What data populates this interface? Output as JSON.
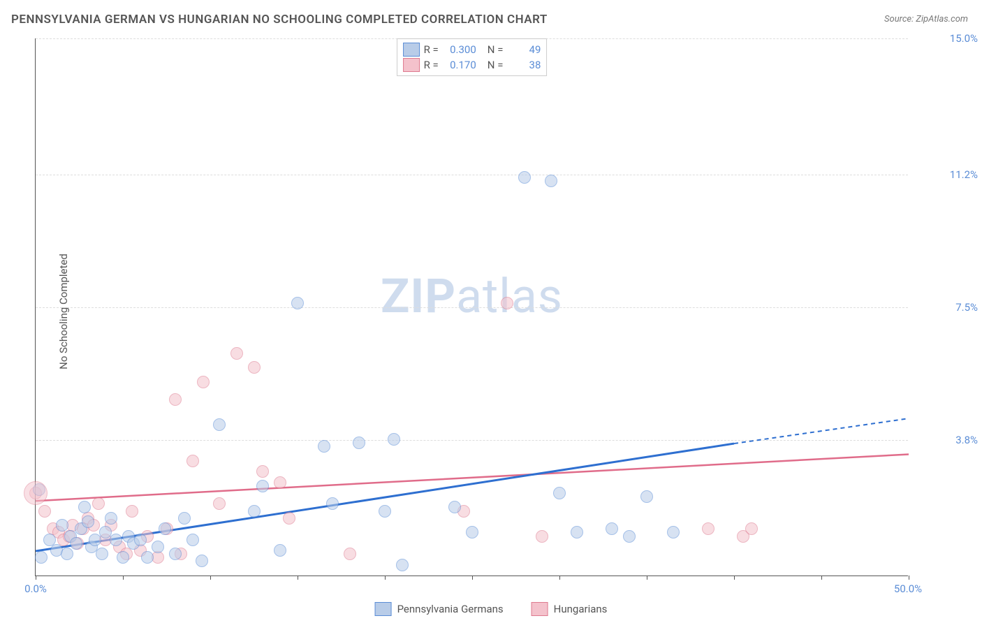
{
  "title": "PENNSYLVANIA GERMAN VS HUNGARIAN NO SCHOOLING COMPLETED CORRELATION CHART",
  "source": "Source: ZipAtlas.com",
  "ylabel": "No Schooling Completed",
  "watermark_bold": "ZIP",
  "watermark_rest": "atlas",
  "colors": {
    "series_a_fill": "#b8cce8",
    "series_a_stroke": "#5b8dd6",
    "series_b_fill": "#f4c2cc",
    "series_b_stroke": "#de7a8f",
    "trend_a": "#2e6fd0",
    "trend_b": "#e06c8a",
    "tick_text": "#5b8dd6",
    "grid": "#dddddd",
    "axis": "#555555",
    "title_color": "#555555",
    "background": "#ffffff"
  },
  "chart": {
    "type": "scatter",
    "xlim": [
      0,
      50
    ],
    "ylim": [
      0,
      15
    ],
    "ygrid": [
      3.8,
      7.5,
      11.2,
      15.0
    ],
    "ytick_labels": [
      "3.8%",
      "7.5%",
      "11.2%",
      "15.0%"
    ],
    "xtick_labels": {
      "min": "0.0%",
      "max": "50.0%"
    },
    "xticks": [
      0,
      5,
      10,
      15,
      20,
      25,
      30,
      35,
      40,
      45,
      50
    ],
    "point_radius": 9,
    "point_opacity": 0.55
  },
  "stats": {
    "a": {
      "R": "0.300",
      "N": "49"
    },
    "b": {
      "R": "0.170",
      "N": "38"
    }
  },
  "legend": {
    "a": "Pennsylvania Germans",
    "b": "Hungarians"
  },
  "trend_lines": {
    "a": {
      "x1": 0,
      "y1": 0.7,
      "x2_solid": 40,
      "y2_solid": 3.7,
      "x2_dash": 50,
      "y2_dash": 4.4
    },
    "b": {
      "x1": 0,
      "y1": 2.1,
      "x2": 50,
      "y2": 3.4
    }
  },
  "series_a": [
    [
      0.2,
      2.4
    ],
    [
      0.3,
      0.5
    ],
    [
      0.8,
      1.0
    ],
    [
      1.2,
      0.7
    ],
    [
      1.5,
      1.4
    ],
    [
      1.8,
      0.6
    ],
    [
      2.0,
      1.1
    ],
    [
      2.3,
      0.9
    ],
    [
      2.6,
      1.3
    ],
    [
      2.8,
      1.9
    ],
    [
      3.0,
      1.5
    ],
    [
      3.2,
      0.8
    ],
    [
      3.4,
      1.0
    ],
    [
      3.8,
      0.6
    ],
    [
      4.0,
      1.2
    ],
    [
      4.3,
      1.6
    ],
    [
      4.6,
      1.0
    ],
    [
      5.0,
      0.5
    ],
    [
      5.3,
      1.1
    ],
    [
      5.6,
      0.9
    ],
    [
      6.0,
      1.0
    ],
    [
      6.4,
      0.5
    ],
    [
      7.0,
      0.8
    ],
    [
      7.4,
      1.3
    ],
    [
      8.0,
      0.6
    ],
    [
      8.5,
      1.6
    ],
    [
      9.0,
      1.0
    ],
    [
      9.5,
      0.4
    ],
    [
      10.5,
      4.2
    ],
    [
      12.5,
      1.8
    ],
    [
      13.0,
      2.5
    ],
    [
      14.0,
      0.7
    ],
    [
      15.0,
      7.6
    ],
    [
      16.5,
      3.6
    ],
    [
      17.0,
      2.0
    ],
    [
      18.5,
      3.7
    ],
    [
      20.0,
      1.8
    ],
    [
      20.5,
      3.8
    ],
    [
      21.0,
      0.3
    ],
    [
      24.0,
      1.9
    ],
    [
      25.0,
      1.2
    ],
    [
      28.0,
      11.1
    ],
    [
      29.5,
      11.0
    ],
    [
      30.0,
      2.3
    ],
    [
      31.0,
      1.2
    ],
    [
      33.0,
      1.3
    ],
    [
      34.0,
      1.1
    ],
    [
      35.0,
      2.2
    ],
    [
      36.5,
      1.2
    ]
  ],
  "series_b": [
    [
      0.0,
      2.3
    ],
    [
      0.5,
      1.8
    ],
    [
      1.0,
      1.3
    ],
    [
      1.3,
      1.2
    ],
    [
      1.6,
      1.0
    ],
    [
      1.9,
      1.1
    ],
    [
      2.1,
      1.4
    ],
    [
      2.4,
      0.9
    ],
    [
      2.7,
      1.3
    ],
    [
      3.0,
      1.6
    ],
    [
      3.3,
      1.4
    ],
    [
      3.6,
      2.0
    ],
    [
      4.0,
      1.0
    ],
    [
      4.3,
      1.4
    ],
    [
      4.8,
      0.8
    ],
    [
      5.2,
      0.6
    ],
    [
      5.5,
      1.8
    ],
    [
      6.0,
      0.7
    ],
    [
      6.4,
      1.1
    ],
    [
      7.0,
      0.5
    ],
    [
      7.5,
      1.3
    ],
    [
      8.0,
      4.9
    ],
    [
      8.3,
      0.6
    ],
    [
      9.0,
      3.2
    ],
    [
      9.6,
      5.4
    ],
    [
      10.5,
      2.0
    ],
    [
      11.5,
      6.2
    ],
    [
      12.5,
      5.8
    ],
    [
      13.0,
      2.9
    ],
    [
      14.0,
      2.6
    ],
    [
      14.5,
      1.6
    ],
    [
      18.0,
      0.6
    ],
    [
      24.5,
      1.8
    ],
    [
      27.0,
      7.6
    ],
    [
      29.0,
      1.1
    ],
    [
      38.5,
      1.3
    ],
    [
      40.5,
      1.1
    ],
    [
      41.0,
      1.3
    ]
  ]
}
